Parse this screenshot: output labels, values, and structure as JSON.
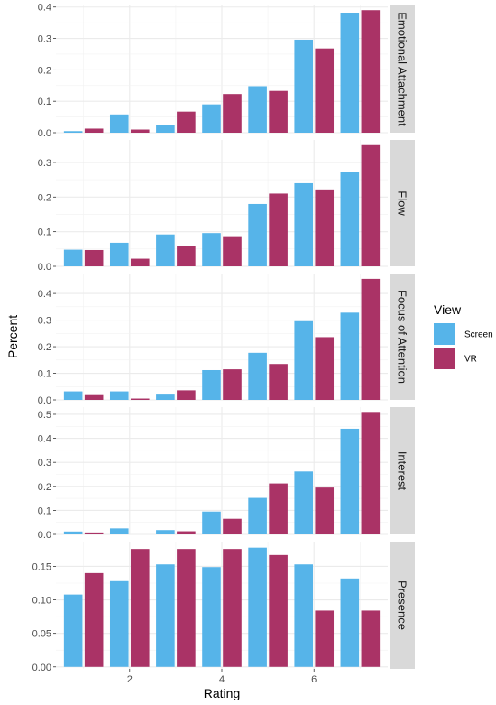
{
  "chart_data": {
    "type": "bar",
    "xlabel": "Rating",
    "ylabel": "Percent",
    "x_ticks": [
      2,
      4,
      6
    ],
    "categories": [
      1,
      2,
      3,
      4,
      5,
      6,
      7
    ],
    "legend": {
      "title": "View",
      "position": "right",
      "items": [
        {
          "name": "Screen",
          "color": "#56B4E9"
        },
        {
          "name": "VR",
          "color": "#AA3366"
        }
      ]
    },
    "grid": true,
    "panels": [
      {
        "label": "Emotional Attachment",
        "ylim": [
          0,
          0.405
        ],
        "y_ticks": [
          0.0,
          0.1,
          0.2,
          0.3,
          0.4
        ],
        "tick_labels": [
          "0.0",
          "0.1",
          "0.2",
          "0.3",
          "0.4"
        ],
        "series": [
          {
            "name": "Screen",
            "values": [
              0.005,
              0.058,
              0.025,
              0.09,
              0.148,
              0.296,
              0.382
            ]
          },
          {
            "name": "VR",
            "values": [
              0.013,
              0.01,
              0.067,
              0.123,
              0.133,
              0.268,
              0.39
            ]
          }
        ]
      },
      {
        "label": "Flow",
        "ylim": [
          0,
          0.365
        ],
        "y_ticks": [
          0.0,
          0.1,
          0.2,
          0.3
        ],
        "tick_labels": [
          "0.0",
          "0.1",
          "0.2",
          "0.3"
        ],
        "series": [
          {
            "name": "Screen",
            "values": [
              0.048,
              0.068,
              0.092,
              0.096,
              0.18,
              0.24,
              0.272
            ]
          },
          {
            "name": "VR",
            "values": [
              0.047,
              0.022,
              0.058,
              0.087,
              0.21,
              0.222,
              0.35
            ]
          }
        ]
      },
      {
        "label": "Focus of Attention",
        "ylim": [
          0,
          0.475
        ],
        "y_ticks": [
          0.0,
          0.1,
          0.2,
          0.3,
          0.4
        ],
        "tick_labels": [
          "0.0",
          "0.1",
          "0.2",
          "0.3",
          "0.4"
        ],
        "series": [
          {
            "name": "Screen",
            "values": [
              0.032,
              0.032,
              0.02,
              0.112,
              0.177,
              0.296,
              0.328
            ]
          },
          {
            "name": "VR",
            "values": [
              0.018,
              0.005,
              0.036,
              0.115,
              0.135,
              0.236,
              0.455
            ]
          }
        ]
      },
      {
        "label": "Interest",
        "ylim": [
          0,
          0.53
        ],
        "y_ticks": [
          0.0,
          0.1,
          0.2,
          0.3,
          0.4,
          0.5
        ],
        "tick_labels": [
          "0.0",
          "0.1",
          "0.2",
          "0.3",
          "0.4",
          "0.5"
        ],
        "series": [
          {
            "name": "Screen",
            "values": [
              0.012,
              0.025,
              0.018,
              0.095,
              0.152,
              0.262,
              0.44
            ]
          },
          {
            "name": "VR",
            "values": [
              0.008,
              0.0,
              0.013,
              0.065,
              0.212,
              0.195,
              0.51
            ]
          }
        ]
      },
      {
        "label": "Presence",
        "ylim": [
          -0.003,
          0.187
        ],
        "y_ticks": [
          0.0,
          0.05,
          0.1,
          0.15
        ],
        "tick_labels": [
          "0.00",
          "0.05",
          "0.10",
          "0.15"
        ],
        "series": [
          {
            "name": "Screen",
            "values": [
              0.108,
              0.128,
              0.153,
              0.149,
              0.178,
              0.153,
              0.132
            ]
          },
          {
            "name": "VR",
            "values": [
              0.14,
              0.176,
              0.176,
              0.176,
              0.167,
              0.084,
              0.084
            ]
          }
        ]
      }
    ]
  }
}
